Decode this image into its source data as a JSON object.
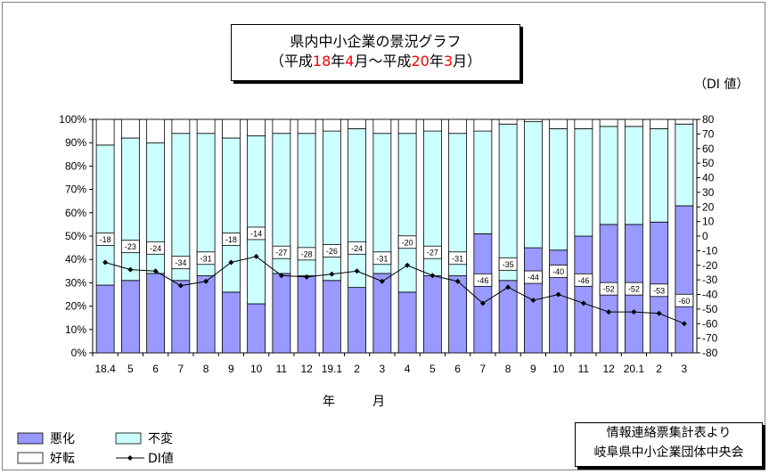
{
  "title": {
    "line1": "県内中小企業の景況グラフ",
    "line2_parts": [
      "（平成",
      "18",
      "年",
      "4",
      "月～平成",
      "20",
      "年",
      "3",
      "月）"
    ]
  },
  "unit_label": "（DI 値）",
  "xlabel": "年　月",
  "source": {
    "line1": "情報連絡票集計表より",
    "line2": "岐阜県中小企業団体中央会"
  },
  "colors": {
    "worse": "#9999ff",
    "same": "#ccffff",
    "better": "#ffffff",
    "di": "#000000"
  },
  "legend": [
    {
      "key": "worse",
      "label": "悪化"
    },
    {
      "key": "same",
      "label": "不変"
    },
    {
      "key": "better",
      "label": "好転"
    },
    {
      "key": "di",
      "label": "DI値"
    }
  ],
  "chart_data": {
    "type": "bar",
    "stacked": true,
    "categories": [
      "18.4",
      "5",
      "6",
      "7",
      "8",
      "9",
      "10",
      "11",
      "12",
      "19.1",
      "2",
      "3",
      "4",
      "5",
      "6",
      "7",
      "8",
      "9",
      "10",
      "11",
      "12",
      "20.1",
      "2",
      "3"
    ],
    "series": [
      {
        "name": "悪化",
        "values": [
          29,
          31,
          34,
          31,
          33,
          26,
          21,
          34,
          33,
          31,
          28,
          34,
          26,
          33,
          33,
          51,
          31,
          45,
          44,
          50,
          55,
          55,
          56,
          63
        ]
      },
      {
        "name": "不変",
        "values": [
          60,
          61,
          56,
          63,
          61,
          66,
          72,
          60,
          61,
          64,
          68,
          60,
          68,
          62,
          61,
          44,
          67,
          54,
          52,
          46,
          42,
          42,
          40,
          35
        ]
      },
      {
        "name": "好転",
        "values": [
          11,
          8,
          10,
          6,
          6,
          8,
          7,
          6,
          6,
          5,
          4,
          6,
          6,
          5,
          6,
          5,
          2,
          1,
          4,
          4,
          3,
          3,
          4,
          2
        ]
      },
      {
        "name": "DI値",
        "values": [
          -18,
          -23,
          -24,
          -34,
          -31,
          -18,
          -14,
          -27,
          -28,
          -26,
          -24,
          -31,
          -20,
          -27,
          -31,
          -46,
          -35,
          -44,
          -40,
          -46,
          -52,
          -52,
          -53,
          -60
        ]
      }
    ],
    "left_axis": {
      "ticks": [
        "0%",
        "10%",
        "20%",
        "30%",
        "40%",
        "50%",
        "60%",
        "70%",
        "80%",
        "90%",
        "100%"
      ],
      "ylim": [
        0,
        100
      ]
    },
    "right_axis": {
      "ticks": [
        "-80",
        "-70",
        "-60",
        "-50",
        "-40",
        "-30",
        "-20",
        "-10",
        "0",
        "10",
        "20",
        "30",
        "40",
        "50",
        "60",
        "70",
        "80"
      ],
      "ylim": [
        -80,
        80
      ]
    },
    "di_label_indices": [
      0,
      1,
      2,
      3,
      4,
      5,
      6,
      7,
      8,
      9,
      10,
      11,
      12,
      13,
      14,
      15,
      16,
      17,
      18,
      19,
      20,
      21,
      22,
      23
    ]
  }
}
